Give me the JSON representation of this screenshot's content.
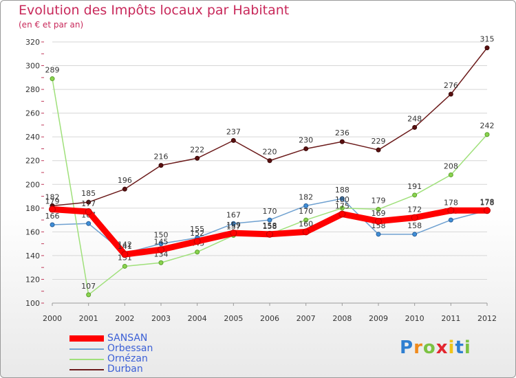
{
  "title": "Evolution des Impôts locaux par Habitant",
  "subtitle": "(en € et par an)",
  "logo_text": "Proxiti",
  "colors": {
    "SANSAN": "#ff0000",
    "Orbessan": "#6ea0d0",
    "Ornézan": "#9fe07a",
    "Durban": "#6b1a1a",
    "title": "#c8285a",
    "legend_text": "#3b5fd6"
  },
  "chart_data": {
    "type": "line",
    "title": "Evolution des Impôts locaux par Habitant",
    "subtitle": "(en € et par an)",
    "xlabel": "",
    "ylabel": "",
    "x": [
      "2000",
      "2001",
      "2002",
      "2003",
      "2004",
      "2005",
      "2006",
      "2007",
      "2008",
      "2009",
      "2010",
      "2011",
      "2012"
    ],
    "ylim": [
      100,
      320
    ],
    "yticks": [
      100,
      120,
      140,
      160,
      180,
      200,
      220,
      240,
      260,
      280,
      300,
      320
    ],
    "series": [
      {
        "name": "SANSAN",
        "values": [
          179,
          177,
          141,
          145,
          152,
          159,
          158,
          160,
          175,
          169,
          172,
          178,
          178
        ]
      },
      {
        "name": "Orbessan",
        "values": [
          166,
          167,
          142,
          150,
          155,
          167,
          170,
          182,
          188,
          158,
          158,
          170,
          178
        ]
      },
      {
        "name": "Ornézan",
        "values": [
          289,
          107,
          131,
          134,
          143,
          157,
          158,
          170,
          180,
          179,
          191,
          208,
          242
        ]
      },
      {
        "name": "Durban",
        "values": [
          182,
          185,
          196,
          216,
          222,
          237,
          220,
          230,
          236,
          229,
          248,
          276,
          315
        ]
      }
    ],
    "legend": [
      "SANSAN",
      "Orbessan",
      "Ornézan",
      "Durban"
    ],
    "legend_position": "bottom-left"
  }
}
